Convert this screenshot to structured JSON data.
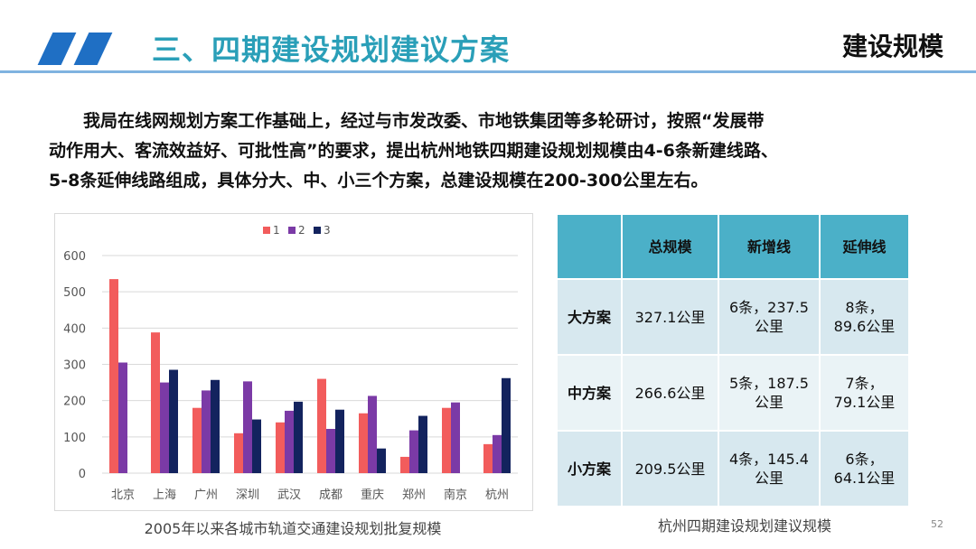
{
  "header": {
    "title": "三、四期建设规划建议方案",
    "section": "建设规模"
  },
  "paragraph": {
    "line1": "我局在线网规划方案工作基础上，经过与市发改委、市地铁集团等多轮研讨，按照“发展带",
    "line2": "动作用大、客流效益好、可批性高”的要求，提出杭州地铁四期建设规划规模由4-6条新建线路、",
    "line3": "5-8条延伸线路组成，具体分大、中、小三个方案，总建设规模在200-300公里左右。"
  },
  "chart_caption": "2005年以来各城市轨道交通建设规划批复规模",
  "chart_data": {
    "type": "bar",
    "categories": [
      "北京",
      "上海",
      "广州",
      "深圳",
      "武汉",
      "成都",
      "重庆",
      "郑州",
      "南京",
      "杭州"
    ],
    "series": [
      {
        "name": "1",
        "color": "#f25c5c",
        "values": [
          535,
          388,
          180,
          110,
          140,
          260,
          165,
          45,
          180,
          80
        ]
      },
      {
        "name": "2",
        "color": "#7b3aa6",
        "values": [
          305,
          250,
          228,
          253,
          172,
          122,
          213,
          118,
          195,
          105
        ]
      },
      {
        "name": "3",
        "color": "#13235e",
        "values": [
          0,
          285,
          257,
          148,
          197,
          175,
          68,
          158,
          0,
          262
        ]
      }
    ],
    "yticks": [
      "0",
      "100",
      "200",
      "300",
      "400",
      "500",
      "600"
    ],
    "ylim": [
      0,
      600
    ],
    "grid": true,
    "legend_position": "top-center"
  },
  "table": {
    "headers": [
      "总规模",
      "新增线",
      "延伸线"
    ],
    "rows": [
      {
        "label": "大方案",
        "total": "327.1公里",
        "new1": "6条，237.5",
        "new2": "公里",
        "ext1": "8条，",
        "ext2": "89.6公里"
      },
      {
        "label": "中方案",
        "total": "266.6公里",
        "new1": "5条，187.5",
        "new2": "公里",
        "ext1": "7条，",
        "ext2": "79.1公里"
      },
      {
        "label": "小方案",
        "total": "209.5公里",
        "new1": "4条，145.4",
        "new2": "公里",
        "ext1": "6条，",
        "ext2": "64.1公里"
      }
    ]
  },
  "table_caption": "杭州四期建设规划建议规模",
  "page_number": "52"
}
